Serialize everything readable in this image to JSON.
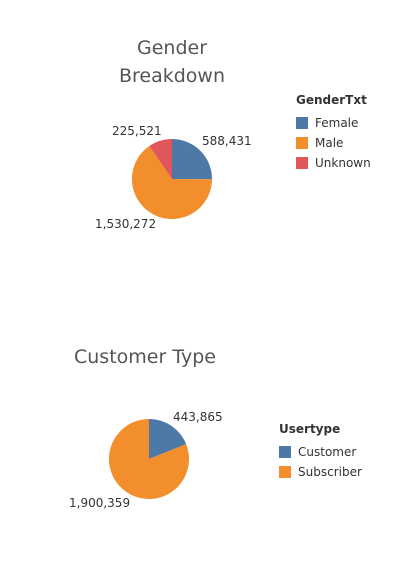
{
  "chart_data": [
    {
      "type": "pie",
      "title": "Gender Breakdown",
      "title_lines": [
        "Gender",
        "Breakdown"
      ],
      "legend_title": "GenderTxt",
      "legend_position": "right",
      "slices": [
        {
          "name": "Female",
          "value": 588431,
          "label": "588,431",
          "color": "#4e79a7"
        },
        {
          "name": "Male",
          "value": 1530272,
          "label": "1,530,272",
          "color": "#f28e2b"
        },
        {
          "name": "Unknown",
          "value": 225521,
          "label": "225,521",
          "color": "#e15759"
        }
      ]
    },
    {
      "type": "pie",
      "title": "Customer Type",
      "title_lines": [
        "Customer Type"
      ],
      "legend_title": "Usertype",
      "legend_position": "right",
      "slices": [
        {
          "name": "Customer",
          "value": 443865,
          "label": "443,865",
          "color": "#4e79a7"
        },
        {
          "name": "Subscriber",
          "value": 1900359,
          "label": "1,900,359",
          "color": "#f28e2b"
        }
      ]
    }
  ]
}
